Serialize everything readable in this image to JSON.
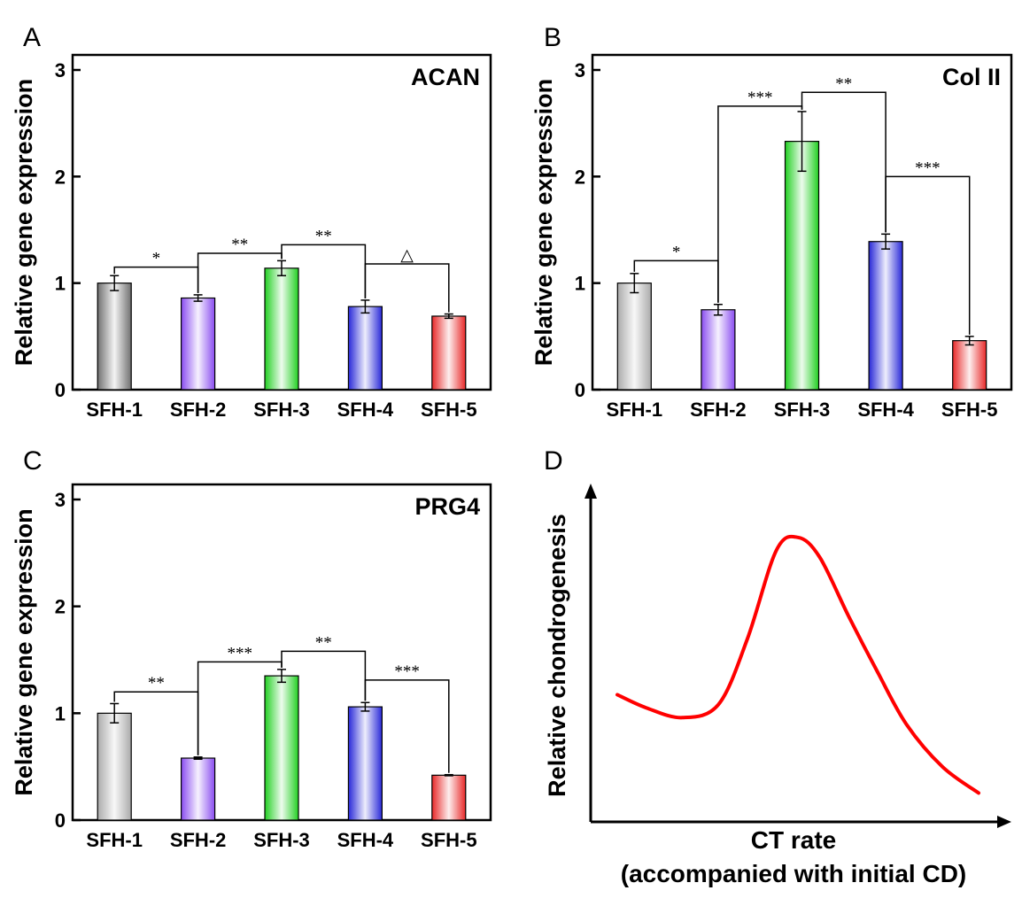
{
  "panels": {
    "A": {
      "letter": "A"
    },
    "B": {
      "letter": "B"
    },
    "C": {
      "letter": "C"
    },
    "D": {
      "letter": "D"
    }
  },
  "chart_data": [
    {
      "panel": "A",
      "type": "bar",
      "title": "ACAN",
      "ylabel": "Relative gene expression",
      "categories": [
        "SFH-1",
        "SFH-2",
        "SFH-3",
        "SFH-4",
        "SFH-5"
      ],
      "values": [
        1.0,
        0.86,
        1.14,
        0.78,
        0.69
      ],
      "errors": [
        0.07,
        0.03,
        0.07,
        0.06,
        0.02
      ],
      "colors": [
        "#707070",
        "#8a4df0",
        "#22d022",
        "#2828d8",
        "#e82828"
      ],
      "ylim": [
        0,
        3
      ],
      "yticks": [
        0,
        1,
        2,
        3
      ],
      "significance": [
        {
          "from": 0,
          "to": 1,
          "label": "*",
          "y": 1.15
        },
        {
          "from": 1,
          "to": 2,
          "label": "**",
          "y": 1.28
        },
        {
          "from": 2,
          "to": 3,
          "label": "**",
          "y": 1.36
        },
        {
          "from": 3,
          "to": 4,
          "label": "△",
          "y": 1.18
        }
      ]
    },
    {
      "panel": "B",
      "type": "bar",
      "title": "Col II",
      "ylabel": "Relative gene expression",
      "categories": [
        "SFH-1",
        "SFH-2",
        "SFH-3",
        "SFH-4",
        "SFH-5"
      ],
      "values": [
        1.0,
        0.75,
        2.33,
        1.39,
        0.46
      ],
      "errors": [
        0.09,
        0.05,
        0.28,
        0.07,
        0.04
      ],
      "colors": [
        "#aaaaaa",
        "#8a4df0",
        "#22d022",
        "#2828d8",
        "#e82828"
      ],
      "ylim": [
        0,
        3
      ],
      "yticks": [
        0,
        1,
        2,
        3
      ],
      "significance": [
        {
          "from": 0,
          "to": 1,
          "label": "*",
          "y": 1.21
        },
        {
          "from": 1,
          "to": 2,
          "label": "***",
          "y": 2.66
        },
        {
          "from": 2,
          "to": 3,
          "label": "**",
          "y": 2.79
        },
        {
          "from": 3,
          "to": 4,
          "label": "***",
          "y": 2.0
        }
      ]
    },
    {
      "panel": "C",
      "type": "bar",
      "title": "PRG4",
      "ylabel": "Relative gene expression",
      "categories": [
        "SFH-1",
        "SFH-2",
        "SFH-3",
        "SFH-4",
        "SFH-5"
      ],
      "values": [
        1.0,
        0.58,
        1.35,
        1.06,
        0.42
      ],
      "errors": [
        0.09,
        0.01,
        0.06,
        0.04,
        0.005
      ],
      "colors": [
        "#aaaaaa",
        "#8a4df0",
        "#22d022",
        "#2828d8",
        "#e82828"
      ],
      "ylim": [
        0,
        3
      ],
      "yticks": [
        0,
        1,
        2,
        3
      ],
      "significance": [
        {
          "from": 0,
          "to": 1,
          "label": "**",
          "y": 1.2
        },
        {
          "from": 1,
          "to": 2,
          "label": "***",
          "y": 1.48
        },
        {
          "from": 2,
          "to": 3,
          "label": "**",
          "y": 1.58
        },
        {
          "from": 3,
          "to": 4,
          "label": "***",
          "y": 1.31
        }
      ]
    },
    {
      "panel": "D",
      "type": "line",
      "title": "",
      "xlabel": "CT rate",
      "xlabel_line2": "(accompanied with initial CD)",
      "ylabel": "Relative chondrogenesis",
      "line_color": "#ff0000",
      "x": [
        0.0,
        0.08,
        0.18,
        0.28,
        0.36,
        0.44,
        0.5,
        0.56,
        0.64,
        0.72,
        0.8,
        0.9,
        1.0
      ],
      "y": [
        0.38,
        0.34,
        0.31,
        0.35,
        0.55,
        0.82,
        0.86,
        0.8,
        0.62,
        0.45,
        0.29,
        0.16,
        0.08
      ],
      "ylim": [
        0,
        1
      ],
      "xlim": [
        0,
        1
      ]
    }
  ]
}
